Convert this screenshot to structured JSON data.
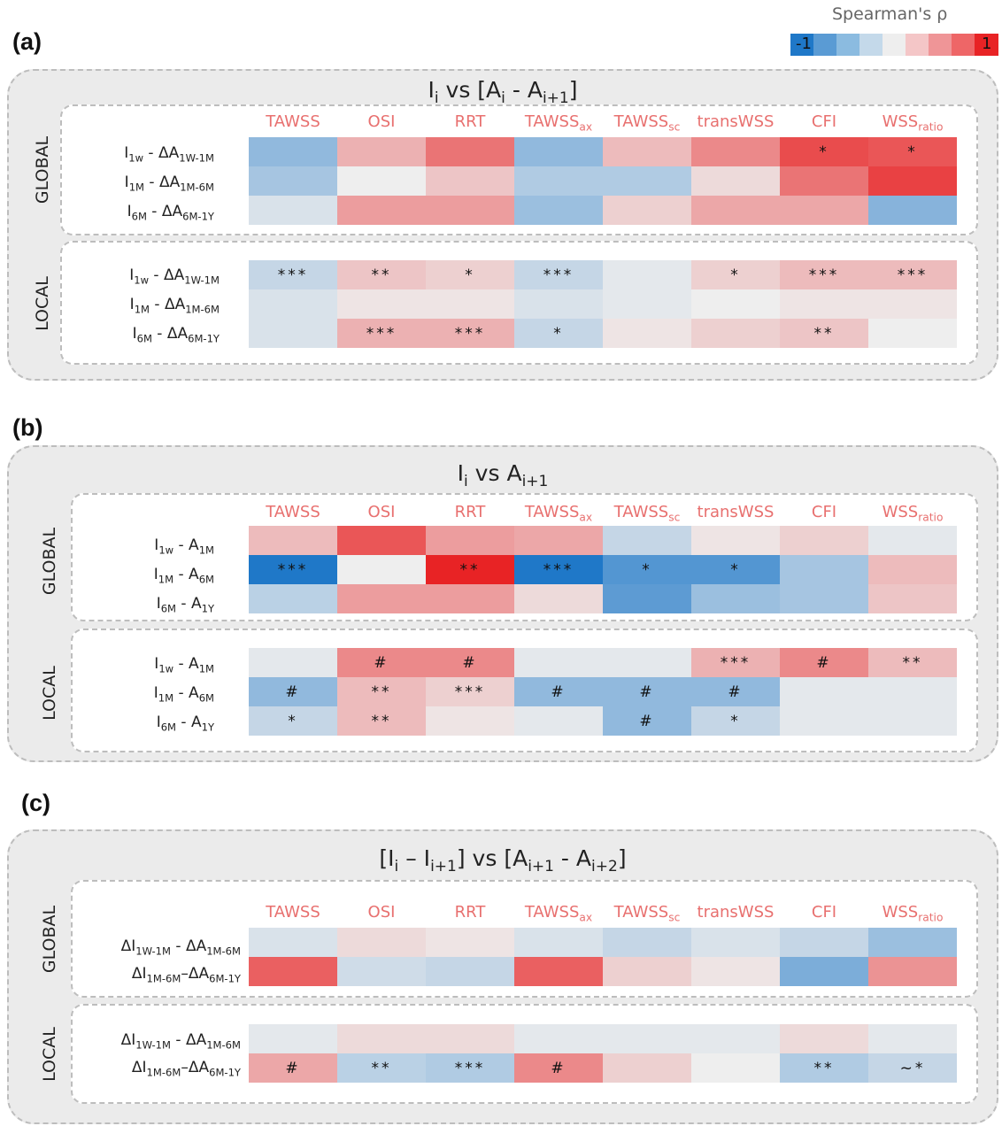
{
  "legend": {
    "title": "Spearman's ρ",
    "min_label": "-1",
    "max_label": "1",
    "colors": [
      "#1f78c8",
      "#5a9bd4",
      "#8bbbe0",
      "#c4d9ea",
      "#eeeeee",
      "#f4c6c7",
      "#ef9597",
      "#ee6667",
      "#e82325"
    ]
  },
  "column_headers": [
    "TAWSS",
    "OSI",
    "RRT",
    "TAWSSax",
    "TAWSSsc",
    "transWSS",
    "CFI",
    "WSSratio"
  ],
  "chart_data": [
    {
      "type": "heatmap",
      "panel": "(a)",
      "title": "Ii vs [Ai - Ai+1]",
      "columns": [
        "TAWSS",
        "OSI",
        "RRT",
        "TAWSSax",
        "TAWSSsc",
        "transWSS",
        "CFI",
        "WSSratio"
      ],
      "value_scale": [
        -1,
        1
      ],
      "sections": [
        {
          "name": "GLOBAL",
          "rows": [
            {
              "label": "I1w - ΔA1W-1M",
              "values": [
                -0.45,
                0.3,
                0.6,
                -0.45,
                0.25,
                0.5,
                0.8,
                0.75
              ],
              "marks": [
                "",
                "",
                "",
                "",
                "",
                "",
                "*",
                "*"
              ]
            },
            {
              "label": "I1M - ΔA1M-6M",
              "values": [
                -0.35,
                0.0,
                0.2,
                -0.3,
                -0.3,
                0.1,
                0.6,
                0.85
              ],
              "marks": [
                "",
                "",
                "",
                "",
                "",
                "",
                "",
                ""
              ]
            },
            {
              "label": "I6M - ΔA6M-1Y",
              "values": [
                -0.1,
                0.4,
                0.4,
                -0.4,
                0.15,
                0.35,
                0.35,
                -0.5
              ],
              "marks": [
                "",
                "",
                "",
                "",
                "",
                "",
                "",
                ""
              ]
            }
          ]
        },
        {
          "name": "LOCAL",
          "rows": [
            {
              "label": "I1w - ΔA1W-1M",
              "values": [
                -0.2,
                0.2,
                0.15,
                -0.2,
                -0.05,
                0.15,
                0.25,
                0.25
              ],
              "marks": [
                "***",
                "**",
                "*",
                "***",
                "",
                "*",
                "***",
                "***"
              ]
            },
            {
              "label": "I1M - ΔA1M-6M",
              "values": [
                -0.1,
                0.05,
                0.05,
                -0.1,
                -0.05,
                0.0,
                0.05,
                0.05
              ],
              "marks": [
                "",
                "",
                "",
                "",
                "",
                "",
                "",
                ""
              ]
            },
            {
              "label": "I6M - ΔA6M-1Y",
              "values": [
                -0.1,
                0.3,
                0.3,
                -0.2,
                0.05,
                0.15,
                0.2,
                0.0
              ],
              "marks": [
                "",
                "***",
                "***",
                "*",
                "",
                "",
                "**",
                ""
              ]
            }
          ]
        }
      ]
    },
    {
      "type": "heatmap",
      "panel": "(b)",
      "title": "Ii vs Ai+1",
      "columns": [
        "TAWSS",
        "OSI",
        "RRT",
        "TAWSSax",
        "TAWSSsc",
        "transWSS",
        "CFI",
        "WSSratio"
      ],
      "value_scale": [
        -1,
        1
      ],
      "sections": [
        {
          "name": "GLOBAL",
          "rows": [
            {
              "label": "I1w - A1M",
              "values": [
                0.25,
                0.75,
                0.4,
                0.35,
                -0.2,
                0.05,
                0.15,
                -0.05
              ],
              "marks": [
                "",
                "",
                "",
                "",
                "",
                "",
                "",
                ""
              ]
            },
            {
              "label": "I1M - A6M",
              "values": [
                -1.0,
                0.0,
                1.0,
                -1.0,
                -0.75,
                -0.75,
                -0.35,
                0.25
              ],
              "marks": [
                "***",
                "",
                "**",
                "***",
                "*",
                "*",
                "",
                ""
              ]
            },
            {
              "label": "I6M - A1Y",
              "values": [
                -0.25,
                0.4,
                0.4,
                0.1,
                -0.7,
                -0.4,
                -0.35,
                0.2
              ],
              "marks": [
                "",
                "",
                "",
                "",
                "",
                "",
                "",
                ""
              ]
            }
          ]
        },
        {
          "name": "LOCAL",
          "rows": [
            {
              "label": "I1w - A1M",
              "values": [
                -0.05,
                0.5,
                0.5,
                -0.05,
                -0.05,
                0.3,
                0.5,
                0.25
              ],
              "marks": [
                "",
                "#",
                "#",
                "",
                "",
                "***",
                "#",
                "**"
              ]
            },
            {
              "label": "I1M - A6M",
              "values": [
                -0.45,
                0.25,
                0.15,
                -0.45,
                -0.45,
                -0.45,
                -0.05,
                -0.05
              ],
              "marks": [
                "#",
                "**",
                "***",
                "#",
                "#",
                "#",
                "",
                ""
              ]
            },
            {
              "label": "I6M - A1Y",
              "values": [
                -0.2,
                0.25,
                0.05,
                -0.05,
                -0.45,
                -0.2,
                -0.05,
                -0.05
              ],
              "marks": [
                "*",
                "**",
                "",
                "",
                "#",
                "*",
                "",
                ""
              ]
            }
          ]
        }
      ]
    },
    {
      "type": "heatmap",
      "panel": "(c)",
      "title": "[Ii – Ii+1] vs [Ai+1 - Ai+2]",
      "columns": [
        "TAWSS",
        "OSI",
        "RRT",
        "TAWSSax",
        "TAWSSsc",
        "transWSS",
        "CFI",
        "WSSratio"
      ],
      "value_scale": [
        -1,
        1
      ],
      "sections": [
        {
          "name": "GLOBAL",
          "rows": [
            {
              "label": "ΔI1W-1M - ΔA1M-6M",
              "values": [
                -0.1,
                0.1,
                0.05,
                -0.1,
                -0.2,
                -0.1,
                -0.2,
                -0.4
              ],
              "marks": [
                "",
                "",
                "",
                "",
                "",
                "",
                "",
                ""
              ]
            },
            {
              "label": "ΔI1M-6M–ΔA6M-1Y",
              "values": [
                0.7,
                -0.15,
                -0.2,
                0.7,
                0.15,
                0.05,
                -0.55,
                0.45
              ],
              "marks": [
                "",
                "",
                "",
                "",
                "",
                "",
                "",
                ""
              ]
            }
          ]
        },
        {
          "name": "LOCAL",
          "rows": [
            {
              "label": "ΔI1W-1M - ΔA1M-6M",
              "values": [
                -0.05,
                0.1,
                0.1,
                -0.05,
                -0.05,
                -0.05,
                0.1,
                -0.05
              ],
              "marks": [
                "",
                "",
                "",
                "",
                "",
                "",
                "",
                ""
              ]
            },
            {
              "label": "ΔI1M-6M–ΔA6M-1Y",
              "values": [
                0.35,
                -0.25,
                -0.3,
                0.5,
                0.15,
                0.0,
                -0.3,
                -0.2
              ],
              "marks": [
                "#",
                "**",
                "***",
                "#",
                "",
                "",
                "**",
                "~*"
              ]
            }
          ]
        }
      ]
    }
  ]
}
